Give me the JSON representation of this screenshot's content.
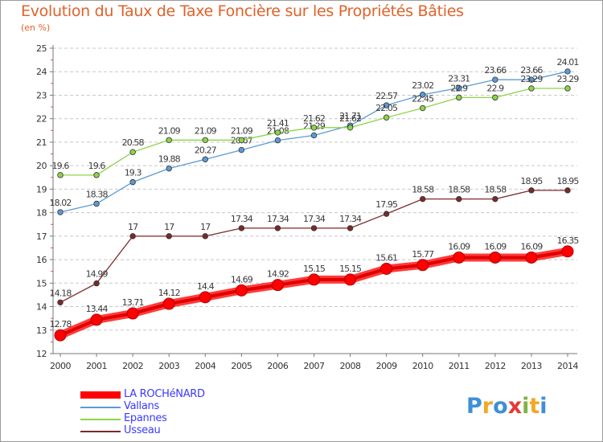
{
  "header": {
    "title": "Evolution du Taux de Taxe Foncière sur les Propriétés Bâties",
    "unit": "(en %)"
  },
  "logo": {
    "letters": [
      "P",
      "r",
      "o",
      "x",
      "i",
      "t",
      "i"
    ],
    "colors": [
      "#3d8fd8",
      "#f5a623",
      "#3d8fd8",
      "#e53935",
      "#7cb342",
      "#f5a623",
      "#3d8fd8"
    ]
  },
  "chart_data": {
    "type": "line",
    "title": "Evolution du Taux de Taxe Foncière sur les Propriétés Bâties",
    "ylabel": "(en %)",
    "xlabel": "",
    "x": [
      "2000",
      "2001",
      "2002",
      "2003",
      "2004",
      "2005",
      "2006",
      "2007",
      "2008",
      "2009",
      "2010",
      "2011",
      "2012",
      "2013",
      "2014"
    ],
    "ylim": [
      12,
      25
    ],
    "yticks": [
      "12",
      "13",
      "14",
      "15",
      "16",
      "17",
      "18",
      "19",
      "20",
      "21",
      "22",
      "23",
      "24",
      "25"
    ],
    "grid": "horizontal dashed",
    "legend_position": "bottom-left",
    "series": [
      {
        "name": "LA ROCHéNARD",
        "color": "#ff0000",
        "highlight": true,
        "values": [
          12.78,
          13.44,
          13.71,
          14.12,
          14.4,
          14.69,
          14.92,
          15.15,
          15.15,
          15.61,
          15.77,
          16.09,
          16.09,
          16.09,
          16.35
        ],
        "labels": [
          "12.78",
          "13.44",
          "13.71",
          "14.12",
          "14.4",
          "14.69",
          "14.92",
          "15.15",
          "15.15",
          "15.61",
          "15.77",
          "16.09",
          "16.09",
          "16.09",
          "16.35"
        ]
      },
      {
        "name": "Vallans",
        "color": "#5b9bd5",
        "highlight": false,
        "values": [
          18.02,
          18.38,
          19.3,
          19.88,
          20.27,
          20.67,
          21.08,
          21.29,
          21.71,
          22.57,
          23.02,
          23.31,
          23.66,
          23.66,
          24.01
        ],
        "labels": [
          "18.02",
          "18.38",
          "19.3",
          "19.88",
          "20.27",
          "20.67",
          "21.08",
          "21.29",
          "21.71",
          "22.57",
          "23.02",
          "23.31",
          "23.66",
          "23.66",
          "24.01"
        ]
      },
      {
        "name": "Epannes",
        "color": "#8ed44a",
        "highlight": false,
        "values": [
          19.6,
          19.6,
          20.58,
          21.09,
          21.09,
          21.09,
          21.41,
          21.62,
          21.62,
          22.05,
          22.45,
          22.9,
          22.9,
          23.29,
          23.29
        ],
        "labels": [
          "19.6",
          "19.6",
          "20.58",
          "21.09",
          "21.09",
          "21.09",
          "21.41",
          "21.62",
          "21.62",
          "22.05",
          "22.45",
          "22.9",
          "22.9",
          "23.29",
          "23.29"
        ]
      },
      {
        "name": "Usseau",
        "color": "#7a2a2a",
        "highlight": false,
        "values": [
          14.18,
          14.99,
          17,
          17,
          17,
          17.34,
          17.34,
          17.34,
          17.34,
          17.95,
          18.58,
          18.58,
          18.58,
          18.95,
          18.95
        ],
        "labels": [
          "14.18",
          "14.99",
          "17",
          "17",
          "17",
          "17.34",
          "17.34",
          "17.34",
          "17.34",
          "17.95",
          "18.58",
          "18.58",
          "18.58",
          "18.95",
          "18.95"
        ]
      }
    ]
  }
}
